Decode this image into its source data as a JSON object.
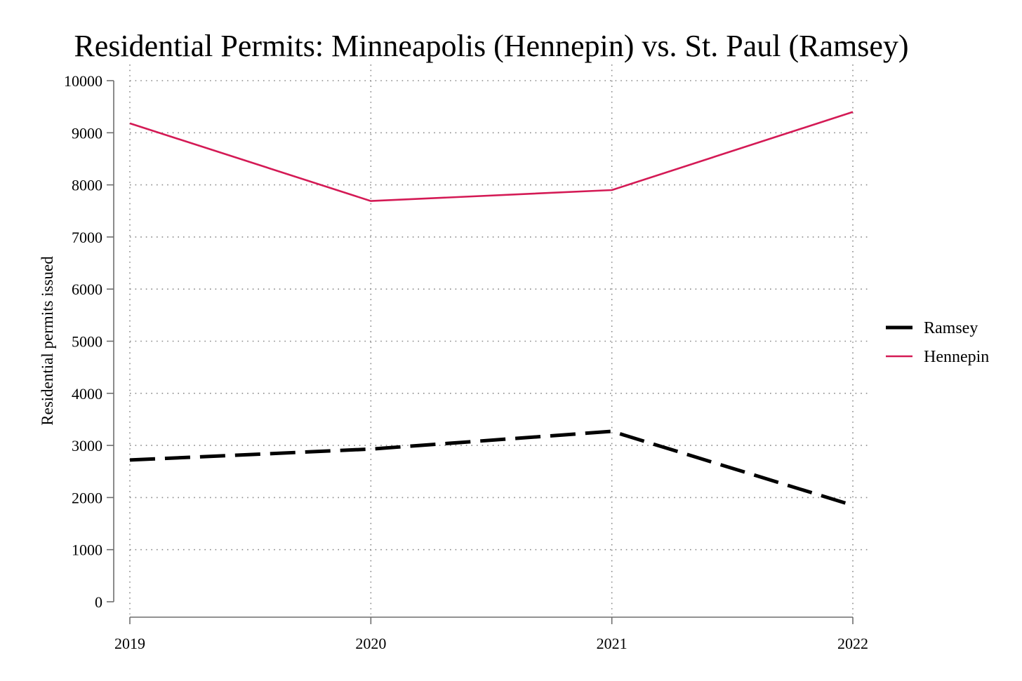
{
  "chart_data": {
    "type": "line",
    "title": "Residential Permits: Minneapolis (Hennepin) vs. St. Paul (Ramsey)",
    "xlabel": "",
    "ylabel": "Residential permits issued",
    "x": [
      2019,
      2020,
      2021,
      2022
    ],
    "x_tick_labels": [
      "2019",
      "2020",
      "2021",
      "2022"
    ],
    "ylim": [
      0,
      10000
    ],
    "y_ticks": [
      0,
      1000,
      2000,
      3000,
      4000,
      5000,
      6000,
      7000,
      8000,
      9000,
      10000
    ],
    "y_tick_labels": [
      "0",
      "1000",
      "2000",
      "3000",
      "4000",
      "5000",
      "6000",
      "7000",
      "8000",
      "9000",
      "10000"
    ],
    "grid": true,
    "legend_position": "right",
    "series": [
      {
        "name": "Ramsey",
        "values": [
          2720,
          2930,
          3270,
          1850
        ],
        "color": "#000000",
        "style": "dashed"
      },
      {
        "name": "Hennepin",
        "values": [
          9180,
          7690,
          7900,
          9400
        ],
        "color": "#d41a55",
        "style": "solid"
      }
    ]
  }
}
